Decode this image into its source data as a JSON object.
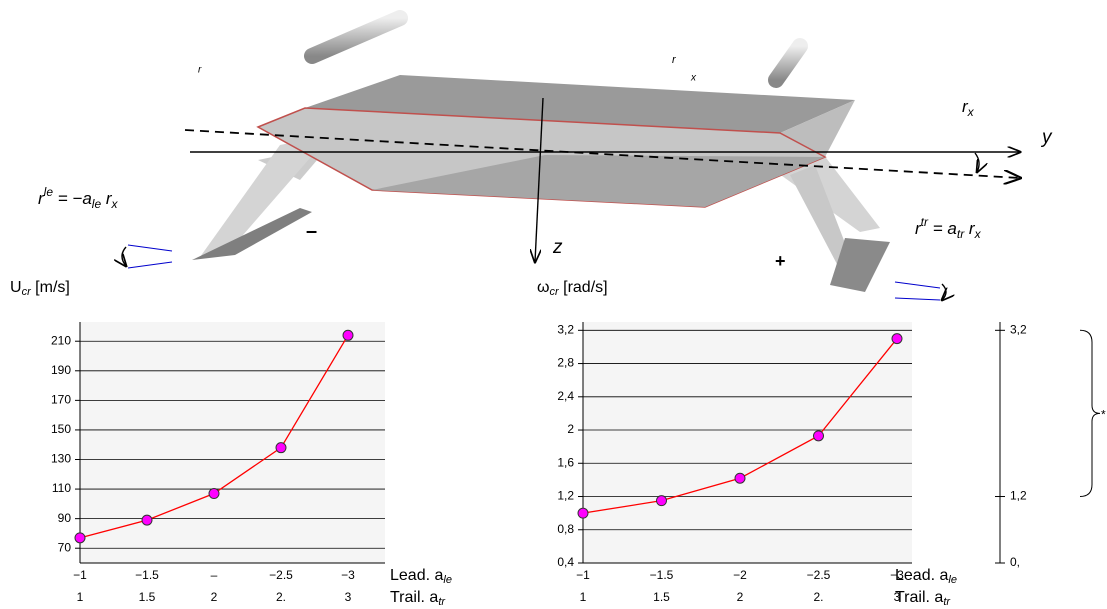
{
  "diagram": {
    "labels": {
      "r_small": "r",
      "r_top": "r",
      "x_top": "x",
      "rx": [
        "r",
        "x"
      ],
      "y_axis": "y",
      "z_axis": "z",
      "minus": "–",
      "plus": "+",
      "r_le": [
        "r",
        "le",
        " = −a",
        "le",
        " r",
        "x"
      ],
      "r_tr": [
        "r",
        "tr",
        " = a",
        "tr",
        " r",
        "x"
      ]
    }
  },
  "chart_data": [
    {
      "type": "line",
      "ylabel": [
        "U",
        "cr",
        " [m/s]"
      ],
      "categories": [
        "−1",
        "−1.5",
        "–",
        "−2.5",
        "−3"
      ],
      "trail_categories": [
        "1",
        "1.5",
        "2",
        "2.",
        "3"
      ],
      "xlabel": [
        "Lead. a",
        "le"
      ],
      "trail_label": [
        "Trail. a",
        "tr"
      ],
      "values": [
        77,
        89,
        107,
        138,
        214
      ],
      "color": "#ff0000",
      "marker_color": "#ff00ff",
      "ylim": [
        60,
        223
      ],
      "yticks": [
        70,
        90,
        110,
        130,
        150,
        170,
        190,
        210
      ],
      "grid": true
    },
    {
      "type": "line",
      "ylabel": [
        "ω",
        "cr",
        " [rad/s]"
      ],
      "categories": [
        "−1",
        "−1.5",
        "−2",
        "−2.5",
        "−3"
      ],
      "trail_categories": [
        "1",
        "1.5",
        "2",
        "2.",
        "3"
      ],
      "xlabel": [
        "Lead. a",
        "le"
      ],
      "trail_label": [
        "Trail. a",
        "tr"
      ],
      "values": [
        1.0,
        1.15,
        1.42,
        1.93,
        3.1
      ],
      "color": "#ff0000",
      "marker_color": "#ff00ff",
      "ylim": [
        0.4,
        3.3
      ],
      "yticks": [
        {
          "value": 0.4,
          "label": "0,4"
        },
        {
          "value": 0.8,
          "label": "0,8"
        },
        {
          "value": 1.2,
          "label": "1,2"
        },
        {
          "value": 1.6,
          "label": "1,6"
        },
        2,
        {
          "value": 2.4,
          "label": "2,4"
        },
        {
          "value": 2.8,
          "label": "2,8"
        },
        {
          "value": 3.2,
          "label": "3,2"
        }
      ],
      "y2lim": [
        0.4,
        3.3
      ],
      "y2ticks": [
        {
          "value": 3.2,
          "label": "3,2"
        },
        {
          "value": 1.2,
          "label": "1,2"
        },
        {
          "value": 0.4,
          "label": "0,"
        }
      ],
      "annotation": "*",
      "grid": true
    }
  ]
}
